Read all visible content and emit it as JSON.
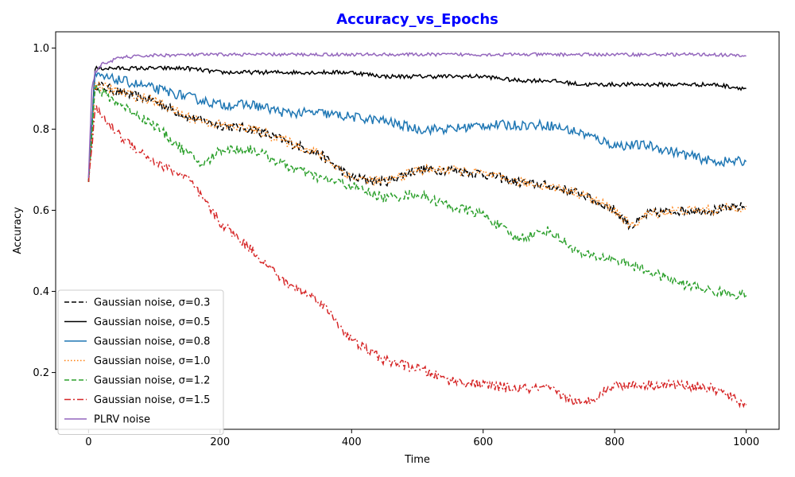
{
  "chart_data": {
    "type": "line",
    "title": "Accuracy_vs_Epochs",
    "title_color": "#0000ff",
    "xlabel": "Time",
    "ylabel": "Accuracy",
    "xlim": [
      -50,
      1050
    ],
    "ylim": [
      0.06,
      1.04
    ],
    "xticks": [
      0,
      200,
      400,
      600,
      800,
      1000
    ],
    "yticks": [
      0.2,
      0.4,
      0.6,
      0.8,
      1.0
    ],
    "xtick_labels": [
      "0",
      "200",
      "400",
      "600",
      "800",
      "1000"
    ],
    "ytick_labels": [
      "0.2",
      "0.4",
      "0.6",
      "0.8",
      "1.0"
    ],
    "grid": false,
    "legend_position": "lower-left",
    "series": [
      {
        "name": "Gaussian noise, σ=0.3",
        "color": "#000000",
        "style": "dashed",
        "x": [
          0,
          10,
          50,
          100,
          150,
          200,
          250,
          300,
          350,
          400,
          450,
          500,
          550,
          600,
          650,
          700,
          750,
          800,
          825,
          850,
          900,
          950,
          1000
        ],
        "y": [
          0.67,
          0.91,
          0.89,
          0.87,
          0.83,
          0.81,
          0.8,
          0.77,
          0.74,
          0.68,
          0.67,
          0.7,
          0.7,
          0.69,
          0.67,
          0.66,
          0.64,
          0.6,
          0.56,
          0.59,
          0.6,
          0.6,
          0.61
        ]
      },
      {
        "name": "Gaussian noise, σ=0.5",
        "color": "#000000",
        "style": "solid",
        "x": [
          0,
          10,
          50,
          100,
          150,
          200,
          250,
          300,
          350,
          400,
          450,
          500,
          550,
          600,
          650,
          700,
          750,
          800,
          850,
          900,
          950,
          1000
        ],
        "y": [
          0.67,
          0.95,
          0.95,
          0.95,
          0.95,
          0.94,
          0.94,
          0.94,
          0.94,
          0.94,
          0.93,
          0.93,
          0.93,
          0.93,
          0.92,
          0.92,
          0.91,
          0.91,
          0.91,
          0.91,
          0.91,
          0.9
        ]
      },
      {
        "name": "Gaussian noise, σ=0.8",
        "color": "#1f77b4",
        "style": "solid",
        "x": [
          0,
          10,
          50,
          100,
          150,
          200,
          250,
          300,
          350,
          400,
          450,
          500,
          550,
          600,
          650,
          700,
          750,
          800,
          850,
          900,
          950,
          1000
        ],
        "y": [
          0.68,
          0.93,
          0.92,
          0.9,
          0.88,
          0.86,
          0.86,
          0.84,
          0.84,
          0.83,
          0.82,
          0.8,
          0.8,
          0.81,
          0.81,
          0.81,
          0.79,
          0.76,
          0.76,
          0.74,
          0.72,
          0.72
        ]
      },
      {
        "name": "Gaussian noise, σ=1.0",
        "color": "#ff7f0e",
        "style": "dotted",
        "x": [
          0,
          10,
          50,
          100,
          150,
          200,
          250,
          300,
          350,
          400,
          450,
          500,
          550,
          600,
          650,
          700,
          750,
          800,
          825,
          850,
          900,
          950,
          1000
        ],
        "y": [
          0.67,
          0.91,
          0.89,
          0.87,
          0.83,
          0.81,
          0.8,
          0.77,
          0.74,
          0.68,
          0.67,
          0.7,
          0.7,
          0.69,
          0.67,
          0.66,
          0.64,
          0.6,
          0.56,
          0.59,
          0.6,
          0.6,
          0.61
        ]
      },
      {
        "name": "Gaussian noise, σ=1.2",
        "color": "#2ca02c",
        "style": "dashed",
        "x": [
          0,
          10,
          50,
          100,
          150,
          175,
          200,
          250,
          300,
          350,
          400,
          450,
          500,
          550,
          600,
          650,
          700,
          750,
          800,
          850,
          900,
          950,
          1000
        ],
        "y": [
          0.67,
          0.9,
          0.86,
          0.81,
          0.74,
          0.71,
          0.75,
          0.75,
          0.71,
          0.68,
          0.66,
          0.63,
          0.64,
          0.61,
          0.59,
          0.53,
          0.55,
          0.49,
          0.48,
          0.45,
          0.42,
          0.4,
          0.39
        ]
      },
      {
        "name": "Gaussian noise, σ=1.5",
        "color": "#d62728",
        "style": "dashdot",
        "x": [
          0,
          10,
          50,
          100,
          150,
          200,
          250,
          300,
          350,
          400,
          450,
          500,
          550,
          600,
          650,
          700,
          750,
          800,
          850,
          900,
          950,
          1000
        ],
        "y": [
          0.67,
          0.85,
          0.78,
          0.72,
          0.68,
          0.57,
          0.5,
          0.42,
          0.38,
          0.28,
          0.23,
          0.21,
          0.18,
          0.17,
          0.16,
          0.16,
          0.12,
          0.17,
          0.17,
          0.17,
          0.16,
          0.12
        ]
      },
      {
        "name": "PLRV noise",
        "color": "#9467bd",
        "style": "solid",
        "x": [
          0,
          5,
          10,
          20,
          50,
          100,
          150,
          200,
          250,
          300,
          350,
          400,
          450,
          500,
          550,
          600,
          650,
          700,
          750,
          800,
          850,
          900,
          950,
          1000
        ],
        "y": [
          0.68,
          0.9,
          0.94,
          0.96,
          0.977,
          0.982,
          0.983,
          0.984,
          0.984,
          0.984,
          0.984,
          0.984,
          0.984,
          0.984,
          0.984,
          0.984,
          0.984,
          0.984,
          0.984,
          0.984,
          0.984,
          0.984,
          0.984,
          0.98
        ]
      }
    ]
  }
}
